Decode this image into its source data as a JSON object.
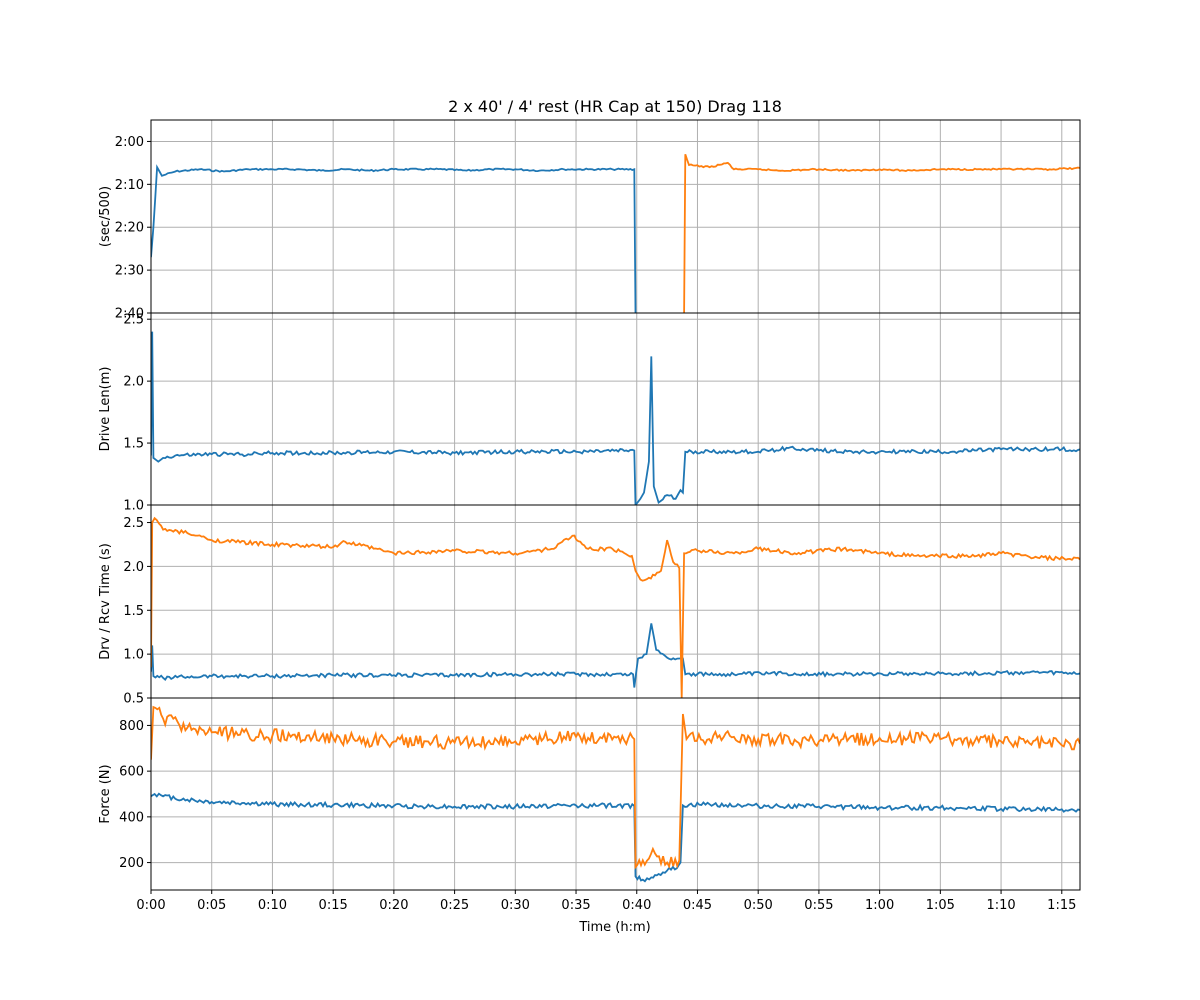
{
  "title": "2 x 40' / 4' rest (HR Cap at 150) Drag 118",
  "xlabel": "Time (h:m)",
  "colors": {
    "series1": "#1f77b4",
    "series2": "#ff7f0e",
    "grid": "#b0b0b0"
  },
  "chart_data": [
    {
      "type": "line",
      "ylabel": "(sec/500)",
      "xlim": [
        0,
        76.5
      ],
      "ylim": [
        160,
        115
      ],
      "inverted_y": true,
      "yticks": [
        120,
        130,
        140,
        150,
        160
      ],
      "ytick_labels": [
        "2:00",
        "2:10",
        "2:20",
        "2:30",
        "2:40"
      ],
      "grid": true,
      "series": [
        {
          "points": [
            [
              0,
              147
            ],
            [
              0.2,
              140
            ],
            [
              0.5,
              126
            ],
            [
              0.9,
              128
            ],
            [
              2,
              127
            ],
            [
              4,
              126.5
            ],
            [
              6,
              127
            ],
            [
              8,
              126.5
            ],
            [
              10,
              126.5
            ],
            [
              12,
              126.5
            ],
            [
              14,
              126.8
            ],
            [
              16,
              126.5
            ],
            [
              18,
              126.8
            ],
            [
              20,
              126.5
            ],
            [
              22,
              126.5
            ],
            [
              24,
              126.5
            ],
            [
              26,
              126.8
            ],
            [
              28,
              126.5
            ],
            [
              30,
              126.5
            ],
            [
              32,
              126.8
            ],
            [
              34,
              126.5
            ],
            [
              36,
              126.5
            ],
            [
              38,
              126.5
            ],
            [
              39.8,
              126.5
            ],
            [
              39.9,
              160
            ]
          ]
        },
        {
          "points": [
            [
              43.9,
              160
            ],
            [
              44,
              123
            ],
            [
              44.3,
              125.5
            ],
            [
              46,
              126
            ],
            [
              47.5,
              125
            ],
            [
              48,
              126.5
            ],
            [
              50,
              126.5
            ],
            [
              52,
              126.8
            ],
            [
              55,
              126.5
            ],
            [
              58,
              126.8
            ],
            [
              60,
              126.5
            ],
            [
              62,
              126.8
            ],
            [
              65,
              126.5
            ],
            [
              68,
              126.5
            ],
            [
              70,
              126.5
            ],
            [
              72,
              126.5
            ],
            [
              74,
              126.5
            ],
            [
              76.5,
              126.2
            ]
          ]
        }
      ]
    },
    {
      "type": "line",
      "ylabel": "Drive Len(m)",
      "xlim": [
        0,
        76.5
      ],
      "ylim": [
        1.0,
        2.55
      ],
      "yticks": [
        1.0,
        1.5,
        2.0,
        2.5
      ],
      "ytick_labels": [
        "1.0",
        "1.5",
        "2.0",
        "2.5"
      ],
      "grid": true,
      "series": [
        {
          "points": [
            [
              0,
              1.4
            ],
            [
              0.1,
              2.4
            ],
            [
              0.2,
              1.38
            ],
            [
              0.6,
              1.35
            ],
            [
              1,
              1.38
            ],
            [
              2,
              1.4
            ],
            [
              5,
              1.41
            ],
            [
              8,
              1.41
            ],
            [
              10,
              1.42
            ],
            [
              15,
              1.42
            ],
            [
              20,
              1.43
            ],
            [
              25,
              1.42
            ],
            [
              30,
              1.43
            ],
            [
              35,
              1.43
            ],
            [
              39.8,
              1.44
            ],
            [
              39.9,
              1.0
            ],
            [
              40.3,
              1.05
            ],
            [
              40.6,
              1.1
            ],
            [
              41.0,
              1.35
            ],
            [
              41.2,
              2.2
            ],
            [
              41.4,
              1.15
            ],
            [
              41.8,
              1.02
            ],
            [
              42.5,
              1.08
            ],
            [
              43.2,
              1.05
            ],
            [
              43.6,
              1.12
            ],
            [
              43.8,
              1.1
            ],
            [
              44.0,
              1.43
            ],
            [
              46,
              1.43
            ],
            [
              50,
              1.43
            ],
            [
              52.5,
              1.46
            ],
            [
              55,
              1.44
            ],
            [
              58,
              1.43
            ],
            [
              60,
              1.43
            ],
            [
              63,
              1.43
            ],
            [
              66,
              1.43
            ],
            [
              68,
              1.44
            ],
            [
              70,
              1.45
            ],
            [
              73,
              1.45
            ],
            [
              75,
              1.45
            ],
            [
              76.5,
              1.45
            ]
          ]
        }
      ]
    },
    {
      "type": "line",
      "ylabel": "Drv / Rcv Time (s)",
      "xlim": [
        0,
        76.5
      ],
      "ylim": [
        0.5,
        2.7
      ],
      "yticks": [
        0.5,
        1.0,
        1.5,
        2.0,
        2.5
      ],
      "ytick_labels": [
        "0.5",
        "1.0",
        "1.5",
        "2.0",
        "2.5"
      ],
      "grid": true,
      "series": [
        {
          "points": [
            [
              0,
              0.8
            ],
            [
              0.1,
              1.1
            ],
            [
              0.2,
              0.75
            ],
            [
              1,
              0.73
            ],
            [
              3,
              0.74
            ],
            [
              5,
              0.75
            ],
            [
              10,
              0.75
            ],
            [
              15,
              0.76
            ],
            [
              20,
              0.76
            ],
            [
              25,
              0.76
            ],
            [
              30,
              0.77
            ],
            [
              35,
              0.77
            ],
            [
              39.7,
              0.77
            ],
            [
              39.8,
              0.62
            ],
            [
              40.1,
              0.95
            ],
            [
              40.8,
              1.0
            ],
            [
              41.2,
              1.35
            ],
            [
              41.6,
              1.05
            ],
            [
              42.5,
              0.96
            ],
            [
              43.5,
              0.95
            ],
            [
              43.8,
              0.95
            ],
            [
              44,
              0.77
            ],
            [
              48,
              0.77
            ],
            [
              52,
              0.78
            ],
            [
              56,
              0.77
            ],
            [
              60,
              0.78
            ],
            [
              64,
              0.78
            ],
            [
              68,
              0.78
            ],
            [
              72,
              0.79
            ],
            [
              76.5,
              0.78
            ]
          ]
        },
        {
          "points": [
            [
              0,
              0.85
            ],
            [
              0.1,
              2.5
            ],
            [
              0.3,
              2.55
            ],
            [
              1,
              2.42
            ],
            [
              3,
              2.38
            ],
            [
              5,
              2.3
            ],
            [
              10,
              2.25
            ],
            [
              15,
              2.22
            ],
            [
              16,
              2.28
            ],
            [
              20,
              2.15
            ],
            [
              25,
              2.18
            ],
            [
              30,
              2.15
            ],
            [
              33,
              2.2
            ],
            [
              34.7,
              2.35
            ],
            [
              36,
              2.2
            ],
            [
              38,
              2.2
            ],
            [
              39.6,
              2.12
            ],
            [
              39.9,
              1.95
            ],
            [
              40.3,
              1.85
            ],
            [
              41,
              1.87
            ],
            [
              42,
              1.95
            ],
            [
              42.5,
              2.3
            ],
            [
              43,
              2.05
            ],
            [
              43.5,
              1.98
            ],
            [
              43.7,
              0.5
            ],
            [
              43.9,
              2.15
            ],
            [
              45,
              2.18
            ],
            [
              48,
              2.15
            ],
            [
              50,
              2.2
            ],
            [
              53,
              2.15
            ],
            [
              57,
              2.2
            ],
            [
              60,
              2.15
            ],
            [
              63,
              2.12
            ],
            [
              66,
              2.12
            ],
            [
              68,
              2.12
            ],
            [
              70,
              2.15
            ],
            [
              73,
              2.1
            ],
            [
              76.5,
              2.08
            ]
          ]
        }
      ]
    },
    {
      "type": "line",
      "ylabel": "Force (N)",
      "xlim": [
        0,
        76.5
      ],
      "ylim": [
        80,
        920
      ],
      "yticks": [
        200,
        400,
        600,
        800
      ],
      "ytick_labels": [
        "200",
        "400",
        "600",
        "800"
      ],
      "grid": true,
      "series": [
        {
          "points": [
            [
              0,
              490
            ],
            [
              0.3,
              500
            ],
            [
              1,
              490
            ],
            [
              3,
              475
            ],
            [
              5,
              465
            ],
            [
              8,
              460
            ],
            [
              10,
              455
            ],
            [
              15,
              452
            ],
            [
              20,
              448
            ],
            [
              25,
              445
            ],
            [
              30,
              445
            ],
            [
              35,
              450
            ],
            [
              39.8,
              448
            ],
            [
              39.9,
              140
            ],
            [
              40.5,
              125
            ],
            [
              41.2,
              135
            ],
            [
              41.8,
              150
            ],
            [
              42.5,
              165
            ],
            [
              43.3,
              175
            ],
            [
              43.6,
              200
            ],
            [
              43.8,
              450
            ],
            [
              46,
              455
            ],
            [
              50,
              448
            ],
            [
              55,
              445
            ],
            [
              60,
              440
            ],
            [
              65,
              440
            ],
            [
              70,
              435
            ],
            [
              76.5,
              430
            ]
          ]
        },
        {
          "points": [
            [
              0,
              650
            ],
            [
              0.2,
              880
            ],
            [
              1,
              830
            ],
            [
              3,
              790
            ],
            [
              5,
              770
            ],
            [
              10,
              755
            ],
            [
              15,
              745
            ],
            [
              20,
              730
            ],
            [
              25,
              725
            ],
            [
              30,
              730
            ],
            [
              35,
              750
            ],
            [
              39.8,
              740
            ],
            [
              39.9,
              180
            ],
            [
              40.5,
              210
            ],
            [
              41.5,
              240
            ],
            [
              42.5,
              200
            ],
            [
              43.5,
              210
            ],
            [
              43.8,
              850
            ],
            [
              44.1,
              740
            ],
            [
              48,
              750
            ],
            [
              50,
              740
            ],
            [
              55,
              730
            ],
            [
              60,
              745
            ],
            [
              65,
              740
            ],
            [
              70,
              730
            ],
            [
              76.5,
              720
            ]
          ]
        }
      ]
    }
  ],
  "xticks": [
    0,
    5,
    10,
    15,
    20,
    25,
    30,
    35,
    40,
    45,
    50,
    55,
    60,
    65,
    70,
    75
  ],
  "xtick_labels": [
    "0:00",
    "0:05",
    "0:10",
    "0:15",
    "0:20",
    "0:25",
    "0:30",
    "0:35",
    "0:40",
    "0:45",
    "0:50",
    "0:55",
    "1:00",
    "1:05",
    "1:10",
    "1:15"
  ]
}
